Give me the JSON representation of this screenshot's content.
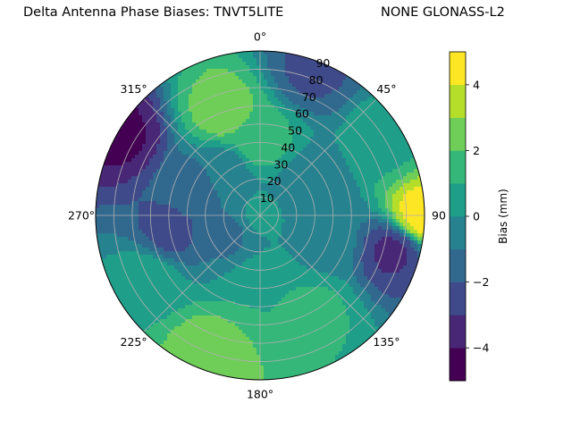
{
  "chart_data": {
    "type": "heatmap",
    "title": "Delta Antenna Phase Biases: TNVT5LITE",
    "subtitle": "NONE GLONASS-L2",
    "projection": "polar",
    "angle_ticks": [
      "0°",
      "45°",
      "90",
      "135°",
      "180°",
      "225°",
      "270°",
      "315°"
    ],
    "radial_ticks": [
      "10",
      "20",
      "30",
      "40",
      "50",
      "60",
      "70",
      "80",
      "90"
    ],
    "radial_tick_values": [
      10,
      20,
      30,
      40,
      50,
      60,
      70,
      80,
      90
    ],
    "rlim": [
      0,
      90
    ],
    "grid": true,
    "colorbar": {
      "label": "Bias (mm)",
      "ticks": [
        "−4",
        "−2",
        "0",
        "2",
        "4"
      ],
      "tick_values": [
        -4,
        -2,
        0,
        2,
        4
      ],
      "range": [
        -5,
        5
      ],
      "levels": [
        -5,
        -4.5,
        -4,
        -3.5,
        -3,
        -2.5,
        -2,
        -1.5,
        -1,
        -0.5,
        0,
        0.5,
        1,
        1.5,
        2,
        2.5,
        3,
        3.5,
        4,
        4.5,
        5
      ],
      "colors": [
        "#440154",
        "#482777",
        "#3e4a89",
        "#31688e",
        "#26828e",
        "#1f9e89",
        "#35b779",
        "#6ece58",
        "#b5de2b",
        "#fde725"
      ],
      "colormap": "viridis"
    },
    "regions": [
      {
        "azimuth": 0,
        "elevation_from_zenith": 0,
        "bias": 0.2
      },
      {
        "azimuth": 0,
        "elevation_from_zenith": 40,
        "bias": 1.6
      },
      {
        "azimuth": 340,
        "elevation_from_zenith": 60,
        "bias": 2.6
      },
      {
        "azimuth": 20,
        "elevation_from_zenith": 85,
        "bias": -2.2
      },
      {
        "azimuth": 60,
        "elevation_from_zenith": 80,
        "bias": 0.8
      },
      {
        "azimuth": 90,
        "elevation_from_zenith": 88,
        "bias": 4.6
      },
      {
        "azimuth": 105,
        "elevation_from_zenith": 75,
        "bias": -3.2
      },
      {
        "azimuth": 110,
        "elevation_from_zenith": 40,
        "bias": -0.6
      },
      {
        "azimuth": 150,
        "elevation_from_zenith": 60,
        "bias": 1.2
      },
      {
        "azimuth": 180,
        "elevation_from_zenith": 40,
        "bias": 1.0
      },
      {
        "azimuth": 200,
        "elevation_from_zenith": 80,
        "bias": 2.8
      },
      {
        "azimuth": 240,
        "elevation_from_zenith": 70,
        "bias": 0.8
      },
      {
        "azimuth": 260,
        "elevation_from_zenith": 50,
        "bias": -2.4
      },
      {
        "azimuth": 290,
        "elevation_from_zenith": 40,
        "bias": -1.6
      },
      {
        "azimuth": 300,
        "elevation_from_zenith": 88,
        "bias": -4.2
      },
      {
        "azimuth": 320,
        "elevation_from_zenith": 30,
        "bias": -0.8
      },
      {
        "azimuth": 240,
        "elevation_from_zenith": 20,
        "bias": -1.2
      },
      {
        "azimuth": 60,
        "elevation_from_zenith": 30,
        "bias": -1.0
      }
    ]
  }
}
